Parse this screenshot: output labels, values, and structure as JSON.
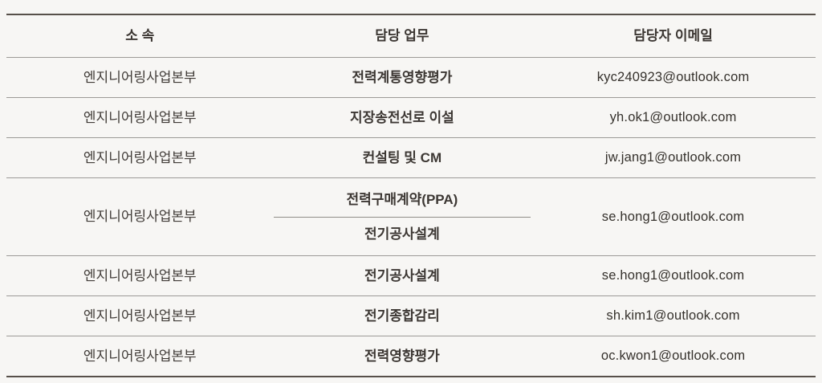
{
  "colors": {
    "background": "#f7f6f4",
    "border_heavy": "#57504a",
    "border_light": "#9c9a97",
    "border_divider": "#8f8c88",
    "text": "#3c3733",
    "text_dept": "#413c38",
    "text_email": "#35312c"
  },
  "table": {
    "columns": [
      {
        "label": "소 속"
      },
      {
        "label": "담당 업무"
      },
      {
        "label": "담당자 이메일"
      }
    ],
    "rows": [
      {
        "dept": "엔지니어링사업본부",
        "duty": "전력계통영향평가",
        "email": "kyc240923@outlook.com"
      },
      {
        "dept": "엔지니어링사업본부",
        "duty": "지장송전선로 이설",
        "email": "yh.ok1@outlook.com"
      },
      {
        "dept": "엔지니어링사업본부",
        "duty": "컨설팅 및 CM",
        "email": "jw.jang1@outlook.com"
      },
      {
        "dept": "엔지니어링사업본부",
        "duties": [
          "전력구매계약(PPA)",
          "전기공사설계"
        ],
        "email": "se.hong1@outlook.com"
      },
      {
        "dept": "엔지니어링사업본부",
        "duty": "전기공사설계",
        "email": "se.hong1@outlook.com"
      },
      {
        "dept": "엔지니어링사업본부",
        "duty": "전기종합감리",
        "email": "sh.kim1@outlook.com"
      },
      {
        "dept": "엔지니어링사업본부",
        "duty": "전력영향평가",
        "email": "oc.kwon1@outlook.com"
      }
    ]
  }
}
